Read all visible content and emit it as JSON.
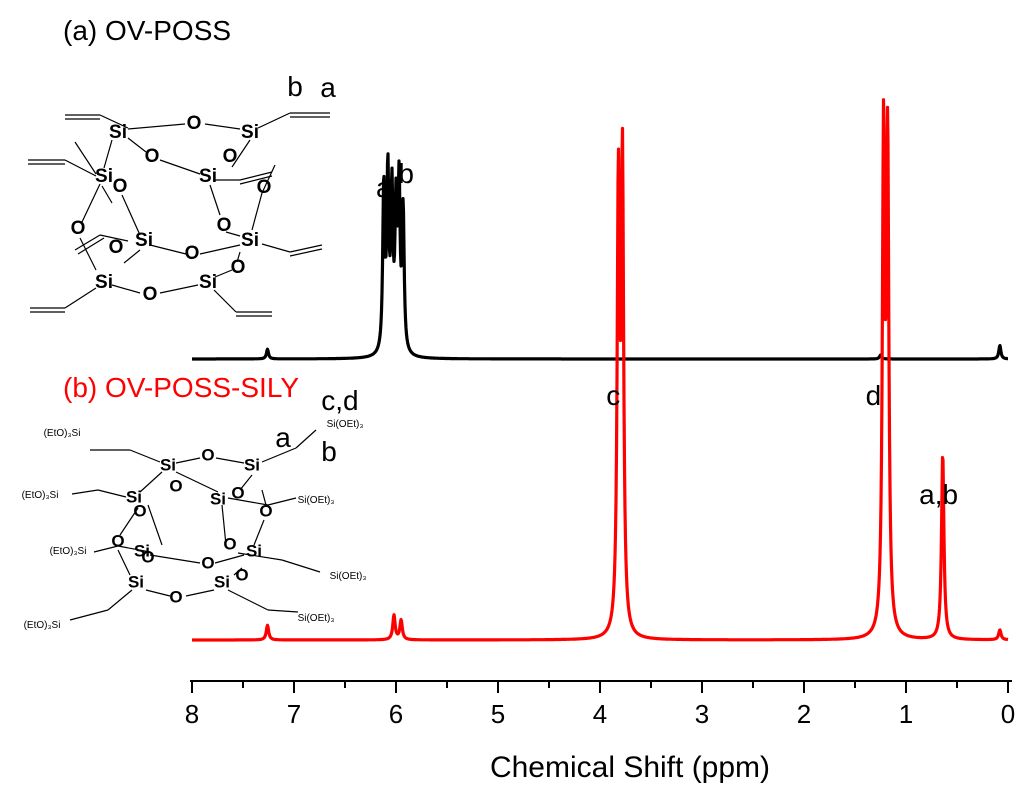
{
  "panels": {
    "a": {
      "label": "(a) OV-POSS",
      "color": "#000000"
    },
    "b": {
      "label": "(b) OV-POSS-SILY",
      "color": "#ff0000"
    }
  },
  "structure_a": {
    "atom_si": "Si",
    "atom_o": "O",
    "label_b": "b",
    "label_a": "a"
  },
  "structure_b": {
    "atom_si": "Si",
    "atom_o": "O",
    "label_a": "a",
    "label_b": "b",
    "group_left": "(EtO)₃Si",
    "group_right": "Si(OEt)₃"
  },
  "chart_data": {
    "type": "line",
    "xlabel": "Chemical Shift (ppm)",
    "ylabel": "",
    "xlim": [
      8,
      0
    ],
    "x_reversed": true,
    "xticks": [
      8,
      7,
      6,
      5,
      4,
      3,
      2,
      1,
      0
    ],
    "grid": false,
    "series": [
      {
        "name": "(a) OV-POSS",
        "color": "#000000",
        "peaks": [
          {
            "x": 7.26,
            "height": 0.05
          },
          {
            "x": 6.12,
            "height": 0.85
          },
          {
            "x": 6.08,
            "height": 0.9
          },
          {
            "x": 6.04,
            "height": 0.8
          },
          {
            "x": 6.0,
            "height": 0.7
          },
          {
            "x": 5.97,
            "height": 0.82
          },
          {
            "x": 5.93,
            "height": 0.72
          },
          {
            "x": 1.25,
            "height": 0.02
          },
          {
            "x": 0.08,
            "height": 0.07
          }
        ],
        "annotations": [
          {
            "text": "a",
            "x": 6.12
          },
          {
            "text": "b",
            "x": 5.9
          }
        ]
      },
      {
        "name": "(b) OV-POSS-SILY",
        "color": "#ff0000",
        "peaks": [
          {
            "x": 7.26,
            "height": 0.03
          },
          {
            "x": 6.02,
            "height": 0.05
          },
          {
            "x": 5.95,
            "height": 0.04
          },
          {
            "x": 3.82,
            "height": 0.9
          },
          {
            "x": 3.78,
            "height": 0.95
          },
          {
            "x": 1.22,
            "height": 1.0
          },
          {
            "x": 1.18,
            "height": 0.98
          },
          {
            "x": 0.64,
            "height": 0.38
          },
          {
            "x": 0.08,
            "height": 0.02
          }
        ],
        "annotations": [
          {
            "text": "c,d",
            "x": 6.55
          },
          {
            "text": "c",
            "x": 3.87
          },
          {
            "text": "d",
            "x": 1.32
          },
          {
            "text": "a,b",
            "x": 0.68
          }
        ]
      }
    ]
  }
}
